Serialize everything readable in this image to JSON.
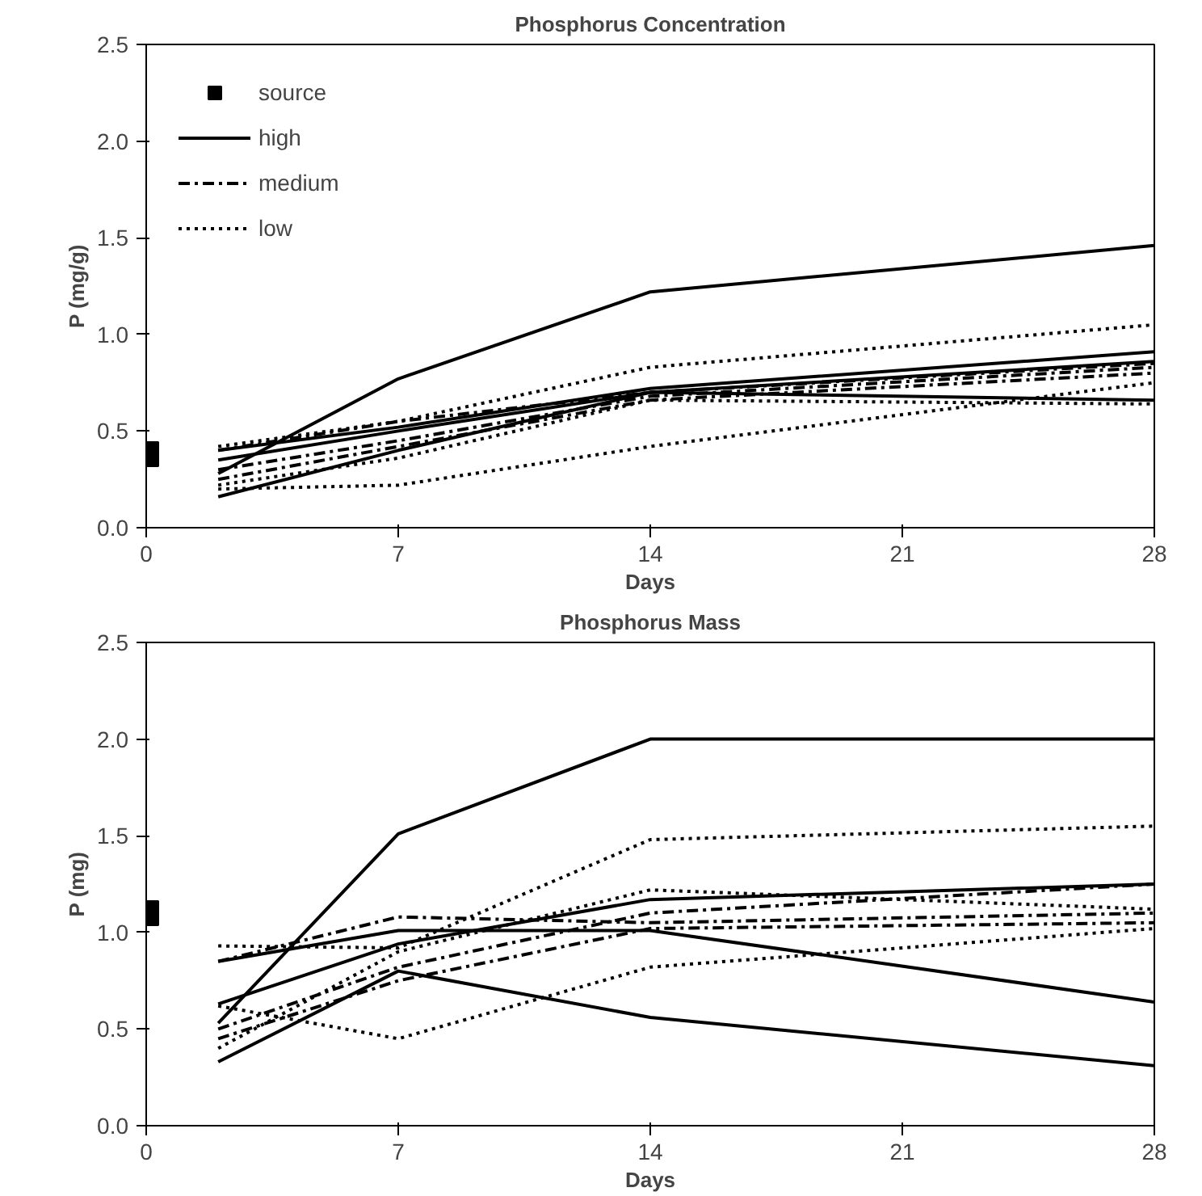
{
  "chart_data": [
    {
      "type": "line",
      "title": "Phosphorus Concentration",
      "xlabel": "Days",
      "ylabel": "P (mg/g)",
      "xlim": [
        0,
        28
      ],
      "xticks": [
        0,
        7,
        14,
        21,
        28
      ],
      "ylim": [
        0,
        2.5
      ],
      "yticks": [
        {
          "value": 0,
          "label": "0.0"
        },
        {
          "value": 0.5,
          "label": "0.5"
        },
        {
          "value": 1,
          "label": "1.0"
        },
        {
          "value": 1.5,
          "label": "1.5"
        },
        {
          "value": 2,
          "label": "2.0"
        },
        {
          "value": 2.5,
          "label": "2.5"
        }
      ],
      "grid": false,
      "legend": "top left",
      "series": [
        {
          "name": "source",
          "type": "scatter",
          "marker": "square",
          "color": "#000000",
          "x": [
            0
          ],
          "values": [
            0.38
          ]
        },
        {
          "name": "high",
          "line_style": "solid",
          "color": "#000000",
          "x": [
            2,
            7,
            14,
            28
          ],
          "values": [
            0.28,
            0.77,
            1.22,
            1.46
          ]
        },
        {
          "line_style": "solid",
          "color": "#000000",
          "x": [
            2,
            7,
            14,
            28
          ],
          "values": [
            0.4,
            0.52,
            0.72,
            0.91
          ]
        },
        {
          "line_style": "solid",
          "color": "#000000",
          "x": [
            2,
            7,
            14,
            28
          ],
          "values": [
            0.16,
            0.4,
            0.7,
            0.66
          ]
        },
        {
          "line_style": "solid",
          "color": "#000000",
          "x": [
            2,
            7,
            14,
            28
          ],
          "values": [
            0.35,
            0.5,
            0.7,
            0.86
          ]
        },
        {
          "name": "medium",
          "line_style": "dashdot",
          "color": "#000000",
          "x": [
            2,
            7,
            14,
            28
          ],
          "values": [
            0.4,
            0.55,
            0.7,
            0.85
          ]
        },
        {
          "line_style": "dashdot",
          "color": "#000000",
          "x": [
            2,
            7,
            14,
            28
          ],
          "values": [
            0.3,
            0.45,
            0.68,
            0.83
          ]
        },
        {
          "line_style": "dashdot",
          "color": "#000000",
          "x": [
            2,
            7,
            14,
            28
          ],
          "values": [
            0.25,
            0.42,
            0.66,
            0.8
          ]
        },
        {
          "name": "low",
          "line_style": "dotted",
          "color": "#000000",
          "x": [
            2,
            7,
            14,
            28
          ],
          "values": [
            0.42,
            0.55,
            0.83,
            1.05
          ]
        },
        {
          "line_style": "dotted",
          "color": "#000000",
          "x": [
            2,
            7,
            14,
            28
          ],
          "values": [
            0.2,
            0.22,
            0.42,
            0.75
          ]
        },
        {
          "line_style": "dotted",
          "color": "#000000",
          "x": [
            2,
            7,
            14,
            28
          ],
          "values": [
            0.22,
            0.36,
            0.66,
            0.64
          ]
        }
      ]
    },
    {
      "type": "line",
      "title": "Phosphorus Mass",
      "xlabel": "Days",
      "ylabel": "P (mg)",
      "xlim": [
        0,
        28
      ],
      "xticks": [
        0,
        7,
        14,
        21,
        28
      ],
      "ylim": [
        0,
        2.5
      ],
      "yticks": [
        {
          "value": 0,
          "label": "0.0"
        },
        {
          "value": 0.5,
          "label": "0.5"
        },
        {
          "value": 1,
          "label": "1.0"
        },
        {
          "value": 1.5,
          "label": "1.5"
        },
        {
          "value": 2,
          "label": "2.0"
        },
        {
          "value": 2.5,
          "label": "2.5"
        }
      ],
      "grid": false,
      "series": [
        {
          "type": "scatter",
          "marker": "square",
          "color": "#000000",
          "x": [
            0
          ],
          "values": [
            1.1
          ]
        },
        {
          "line_style": "solid",
          "color": "#000000",
          "x": [
            2,
            7,
            14,
            28
          ],
          "values": [
            0.53,
            1.51,
            2.0,
            2.0
          ]
        },
        {
          "line_style": "solid",
          "color": "#000000",
          "x": [
            2,
            7,
            14,
            28
          ],
          "values": [
            0.85,
            1.01,
            1.01,
            0.64
          ]
        },
        {
          "line_style": "solid",
          "color": "#000000",
          "x": [
            2,
            7,
            14,
            28
          ],
          "values": [
            0.33,
            0.8,
            0.56,
            0.31
          ]
        },
        {
          "line_style": "solid",
          "color": "#000000",
          "x": [
            2,
            7,
            14,
            28
          ],
          "values": [
            0.63,
            0.94,
            1.17,
            1.25
          ]
        },
        {
          "line_style": "dashdot",
          "color": "#000000",
          "x": [
            2,
            7,
            14,
            28
          ],
          "values": [
            0.85,
            1.08,
            1.05,
            1.1
          ]
        },
        {
          "line_style": "dashdot",
          "color": "#000000",
          "x": [
            2,
            7,
            14,
            28
          ],
          "values": [
            0.5,
            0.82,
            1.1,
            1.25
          ]
        },
        {
          "line_style": "dashdot",
          "color": "#000000",
          "x": [
            2,
            7,
            14,
            28
          ],
          "values": [
            0.45,
            0.75,
            1.02,
            1.05
          ]
        },
        {
          "line_style": "dotted",
          "color": "#000000",
          "x": [
            2,
            7,
            14,
            28
          ],
          "values": [
            0.93,
            0.92,
            1.48,
            1.55
          ]
        },
        {
          "line_style": "dotted",
          "color": "#000000",
          "x": [
            2,
            7,
            14,
            28
          ],
          "values": [
            0.62,
            0.45,
            0.82,
            1.02
          ]
        },
        {
          "line_style": "dotted",
          "color": "#000000",
          "x": [
            2,
            7,
            14,
            28
          ],
          "values": [
            0.4,
            0.9,
            1.22,
            1.12
          ]
        }
      ]
    }
  ]
}
